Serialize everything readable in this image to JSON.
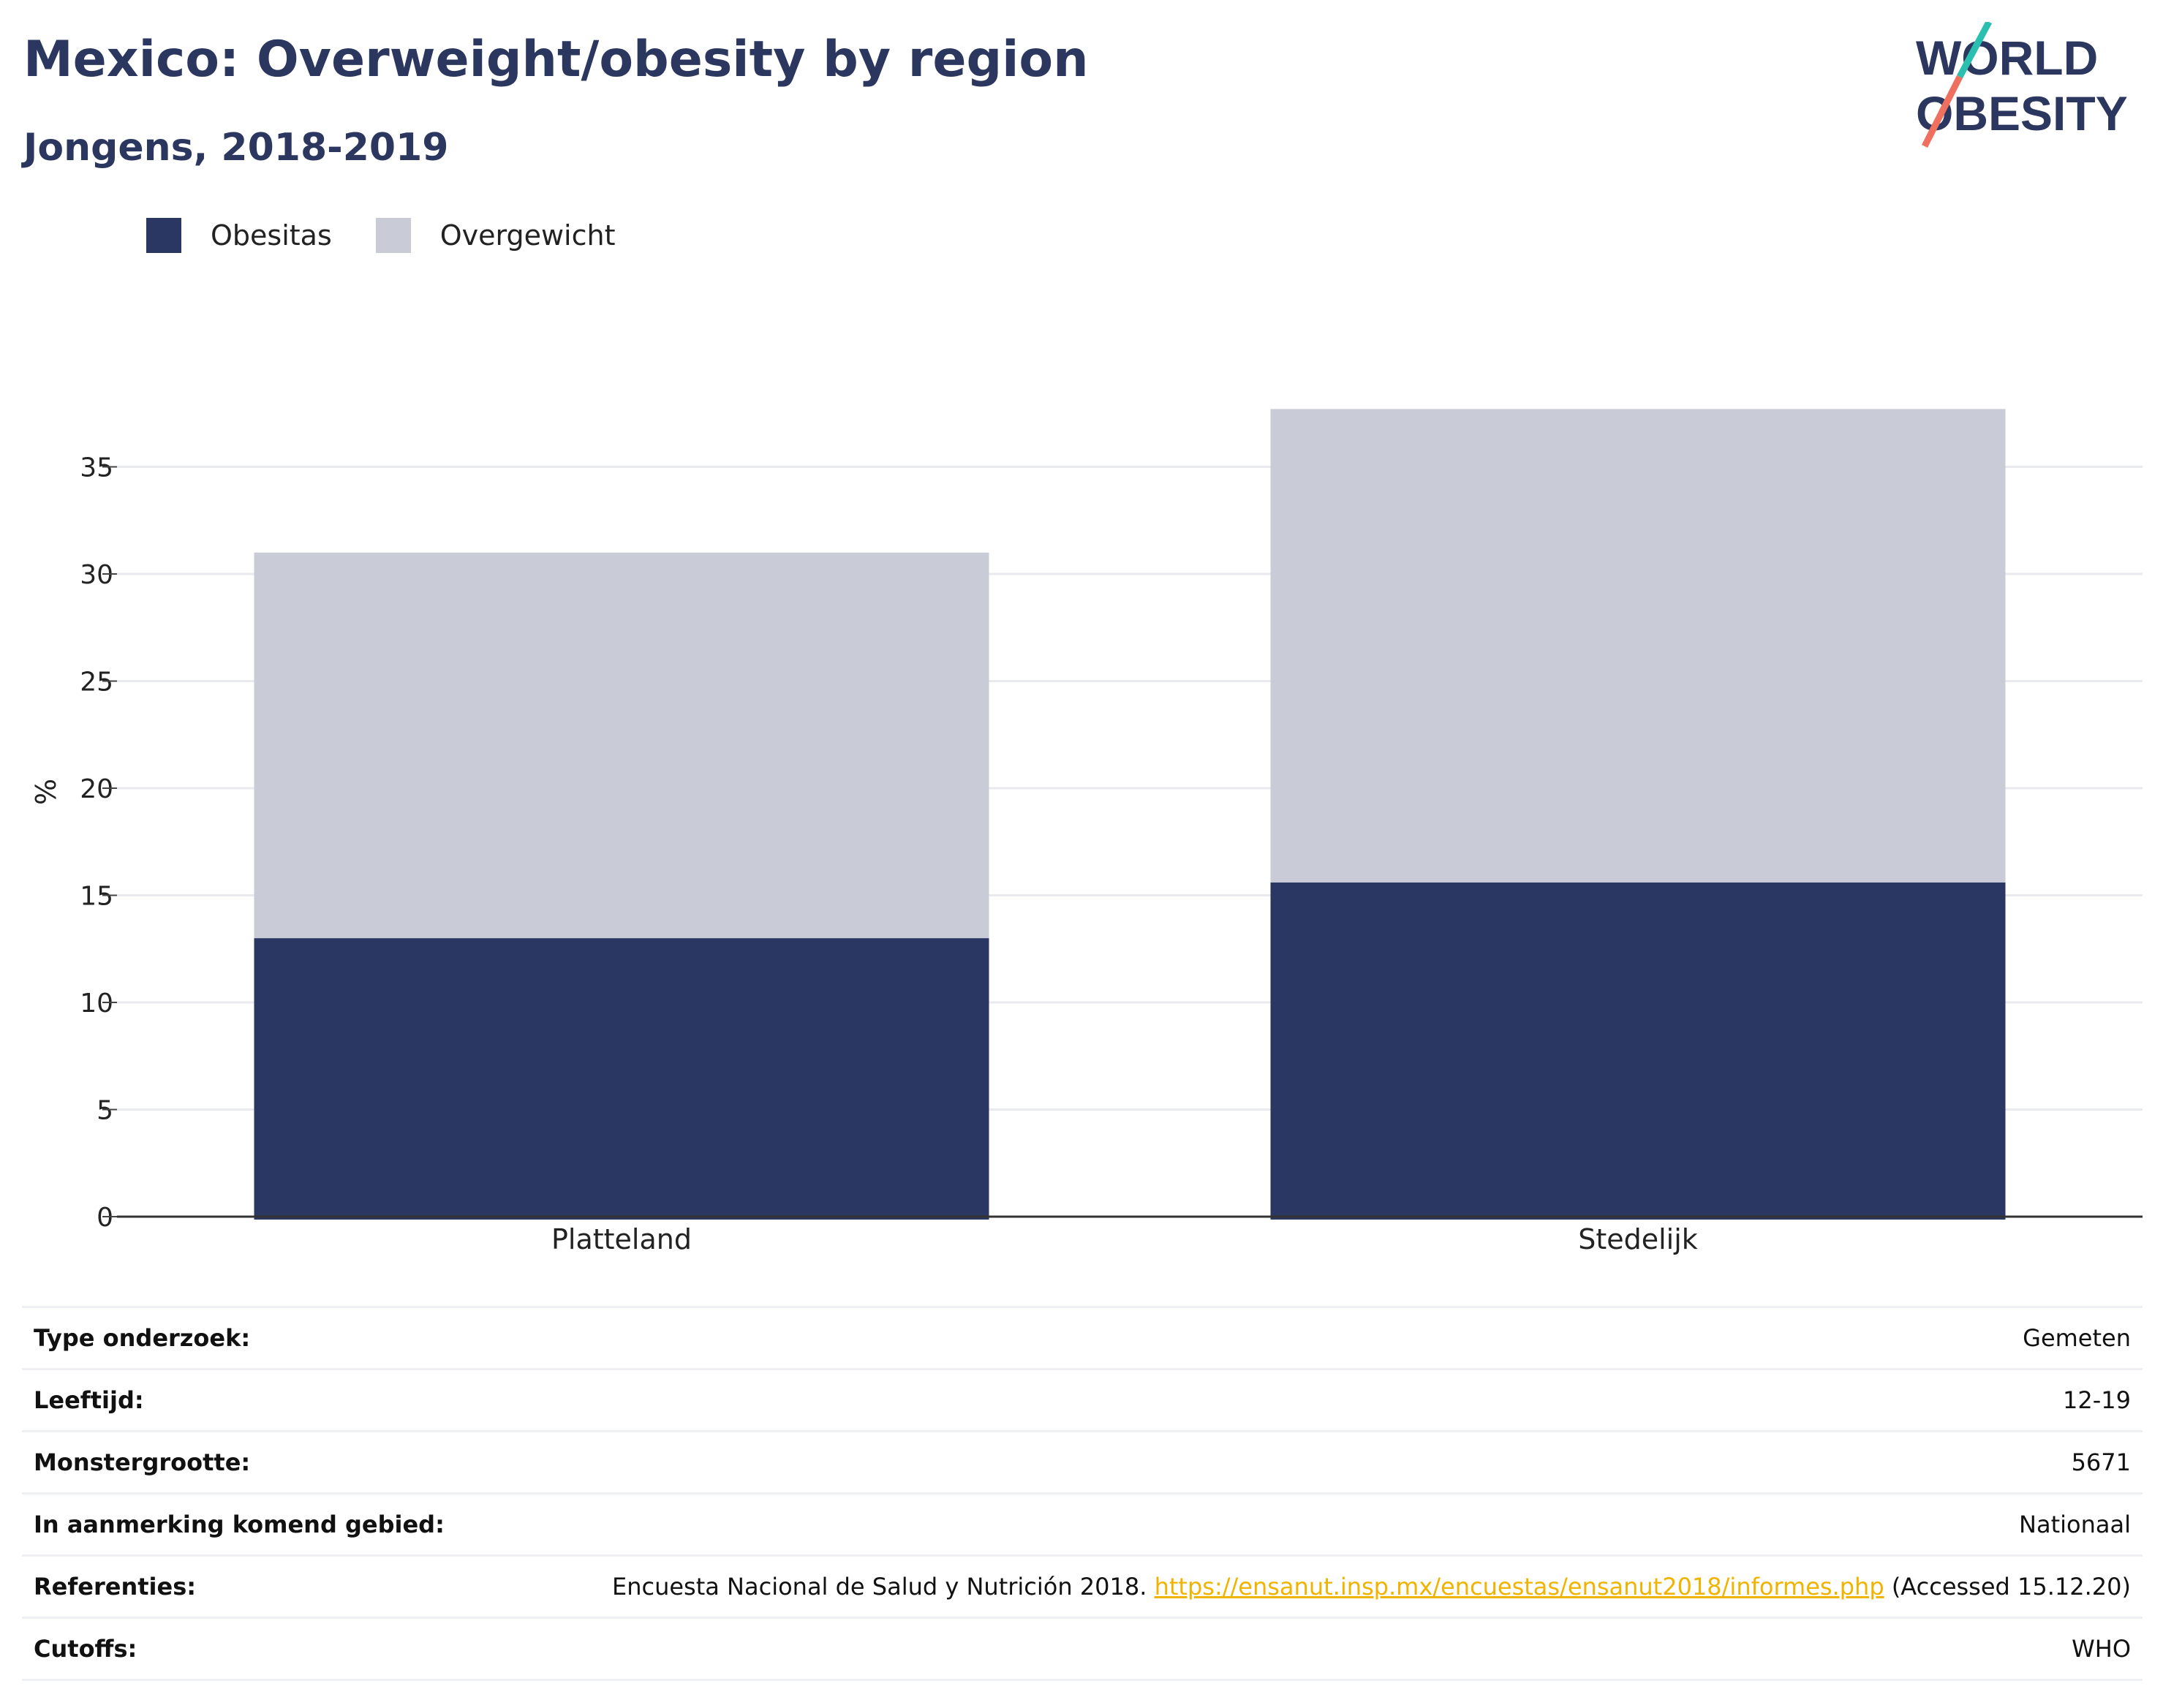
{
  "header": {
    "title": "Mexico: Overweight/obesity by region",
    "subtitle": "Jongens, 2018-2019"
  },
  "logo": {
    "line1": "WORLD",
    "line2": "OBESITY",
    "accent_colors": [
      "#2bbfb0",
      "#f07060"
    ]
  },
  "colors": {
    "obesitas": "#2b3763",
    "overgewicht": "#c9ccd7",
    "grid": "#e9eaef",
    "axis": "#333333"
  },
  "chart_data": {
    "type": "bar",
    "stacked": true,
    "categories": [
      "Platteland",
      "Stedelijk"
    ],
    "series": [
      {
        "name": "Obesitas",
        "values": [
          13.0,
          15.6
        ]
      },
      {
        "name": "Overgewicht",
        "values": [
          18.0,
          22.1
        ]
      }
    ],
    "ylabel": "%",
    "xlabel": "",
    "ylim": [
      0,
      38
    ],
    "yticks": [
      0,
      5,
      10,
      15,
      20,
      25,
      30,
      35
    ],
    "grid": true,
    "legend_position": "top-left"
  },
  "info": [
    {
      "label": "Type onderzoek:",
      "value": "Gemeten"
    },
    {
      "label": "Leeftijd:",
      "value": "12-19"
    },
    {
      "label": "Monstergrootte:",
      "value": "5671"
    },
    {
      "label": "In aanmerking komend gebied:",
      "value": "Nationaal"
    },
    {
      "label": "Referenties:",
      "value_prefix": "Encuesta Nacional de Salud y Nutrición 2018.",
      "link": "https://ensanut.insp.mx/encuestas/ensanut2018/informes.php",
      "value_suffix": "(Accessed 15.12.20)"
    },
    {
      "label": "Cutoffs:",
      "value": "WHO"
    }
  ]
}
